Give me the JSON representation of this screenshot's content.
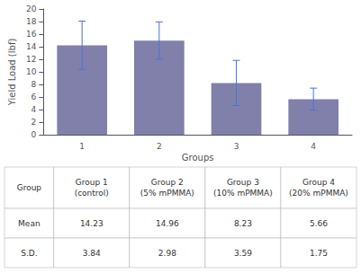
{
  "chart_data": {
    "type": "bar",
    "categories": [
      "1",
      "2",
      "3",
      "4"
    ],
    "values": [
      14.23,
      14.96,
      8.23,
      5.66
    ],
    "errors": [
      3.84,
      2.98,
      3.59,
      1.75
    ],
    "color": "#8080aa",
    "xlabel": "Groups",
    "ylabel": "Yield Load (lbf)",
    "ylim": [
      0,
      20
    ],
    "yticks": [
      0,
      2,
      4,
      6,
      8,
      10,
      12,
      14,
      16,
      18,
      20
    ],
    "grid": false,
    "table": {
      "columns": [
        "Group",
        "Group 1\n(control)",
        "Group 2\n(5% mPMMA)",
        "Group 3\n(10% mPMMA)",
        "Group 4\n(20% mPMMA)"
      ],
      "rows": [
        [
          "Mean",
          "14.23",
          "14.96",
          "8.23",
          "5.66"
        ],
        [
          "S.D.",
          "3.84",
          "2.98",
          "3.59",
          "1.75"
        ]
      ]
    }
  }
}
